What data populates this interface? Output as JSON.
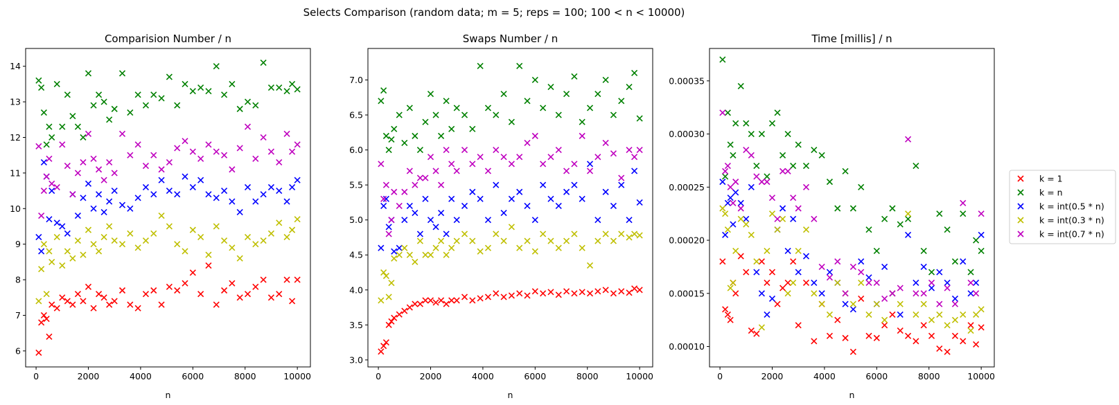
{
  "suptitle": "Selects Comparison (random data;  m = 5;  reps = 100;  100 < n < 10000)",
  "series_meta": [
    {
      "name": "k = 1",
      "color": "#ff0000"
    },
    {
      "name": "k = n",
      "color": "#008000"
    },
    {
      "name": "k = int(0.5 * n)",
      "color": "#0000ff"
    },
    {
      "name": "k = int(0.3 * n)",
      "color": "#bfbf00"
    },
    {
      "name": "k = int(0.7 * n)",
      "color": "#bf00bf"
    }
  ],
  "legend_placement": "center-right outside",
  "chart_data": [
    {
      "type": "scatter",
      "title": "Comparision Number / n",
      "xlabel": "n",
      "ylabel": "",
      "xlim": [
        -400,
        10500
      ],
      "ylim": [
        5.55,
        14.5
      ],
      "xticks": [
        0,
        2000,
        4000,
        6000,
        8000,
        10000
      ],
      "xtick_labels": [
        "0",
        "2000",
        "4000",
        "6000",
        "8000",
        "10000"
      ],
      "yticks": [
        6,
        7,
        8,
        9,
        10,
        11,
        12,
        13,
        14
      ],
      "ytick_labels": [
        "6",
        "7",
        "8",
        "9",
        "10",
        "11",
        "12",
        "13",
        "14"
      ],
      "x": [
        100,
        200,
        300,
        400,
        500,
        600,
        800,
        1000,
        1200,
        1400,
        1600,
        1800,
        2000,
        2200,
        2400,
        2600,
        2800,
        3000,
        3300,
        3600,
        3900,
        4200,
        4500,
        4800,
        5100,
        5400,
        5700,
        6000,
        6300,
        6600,
        6900,
        7200,
        7500,
        7800,
        8100,
        8400,
        8700,
        9000,
        9300,
        9600,
        9800,
        10000
      ],
      "series": [
        {
          "name": "k = 1",
          "values": [
            5.95,
            6.8,
            7.0,
            6.9,
            6.4,
            7.3,
            7.2,
            7.5,
            7.4,
            7.3,
            7.6,
            7.4,
            7.8,
            7.2,
            7.6,
            7.5,
            7.3,
            7.4,
            7.7,
            7.3,
            7.2,
            7.6,
            7.7,
            7.3,
            7.8,
            7.7,
            7.9,
            8.2,
            7.6,
            8.4,
            7.3,
            7.7,
            7.9,
            7.5,
            7.6,
            7.8,
            8.0,
            7.5,
            7.6,
            8.0,
            7.4,
            8.0
          ]
        },
        {
          "name": "k = n",
          "values": [
            13.6,
            13.4,
            12.7,
            11.8,
            12.3,
            12.0,
            13.5,
            12.3,
            13.2,
            12.6,
            12.3,
            12.0,
            13.8,
            12.9,
            13.2,
            13.0,
            12.5,
            12.8,
            13.8,
            12.7,
            13.2,
            12.9,
            13.2,
            13.1,
            13.7,
            12.9,
            13.5,
            13.3,
            13.4,
            13.3,
            14.0,
            13.2,
            13.5,
            12.8,
            13.0,
            12.9,
            14.1,
            13.4,
            13.4,
            13.3,
            13.5,
            13.35
          ]
        },
        {
          "name": "k = int(0.5 * n)",
          "values": [
            9.2,
            8.8,
            11.3,
            10.9,
            9.7,
            10.5,
            9.6,
            9.5,
            9.3,
            10.4,
            9.8,
            10.3,
            10.7,
            10.0,
            10.4,
            9.9,
            10.2,
            10.5,
            10.1,
            10.0,
            10.3,
            10.6,
            10.4,
            10.8,
            10.5,
            10.4,
            10.9,
            10.6,
            10.8,
            10.4,
            10.3,
            10.5,
            10.2,
            9.9,
            10.6,
            10.2,
            10.4,
            10.6,
            10.5,
            10.2,
            10.6,
            10.8
          ]
        },
        {
          "name": "k = int(0.3 * n)",
          "values": [
            7.4,
            8.3,
            9.0,
            7.6,
            8.8,
            8.5,
            9.2,
            8.4,
            8.8,
            8.6,
            9.1,
            8.7,
            9.4,
            9.0,
            8.8,
            9.2,
            9.5,
            9.1,
            9.0,
            9.3,
            8.9,
            9.1,
            9.3,
            9.8,
            9.5,
            9.0,
            8.8,
            9.4,
            9.2,
            8.7,
            9.5,
            9.1,
            8.9,
            8.6,
            9.2,
            9.0,
            9.1,
            9.3,
            9.6,
            9.2,
            9.4,
            9.7
          ]
        },
        {
          "name": "k = int(0.7 * n)",
          "values": [
            11.75,
            9.8,
            10.5,
            10.9,
            11.4,
            10.7,
            10.6,
            11.8,
            11.2,
            10.4,
            11.0,
            11.3,
            12.1,
            11.4,
            11.1,
            10.8,
            11.3,
            11.0,
            12.1,
            11.5,
            11.8,
            11.2,
            11.5,
            11.1,
            11.3,
            11.7,
            11.9,
            11.6,
            11.4,
            11.8,
            11.6,
            11.5,
            11.1,
            11.7,
            12.3,
            11.4,
            12.0,
            11.6,
            11.3,
            12.1,
            11.6,
            11.8
          ]
        }
      ]
    },
    {
      "type": "scatter",
      "title": "Swaps Number / n",
      "xlabel": "n",
      "ylabel": "",
      "xlim": [
        -400,
        10500
      ],
      "ylim": [
        2.9,
        7.45
      ],
      "xticks": [
        0,
        2000,
        4000,
        6000,
        8000,
        10000
      ],
      "xtick_labels": [
        "0",
        "2000",
        "4000",
        "6000",
        "8000",
        "10000"
      ],
      "yticks": [
        3.0,
        3.5,
        4.0,
        4.5,
        5.0,
        5.5,
        6.0,
        6.5,
        7.0
      ],
      "ytick_labels": [
        "3.0",
        "3.5",
        "4.0",
        "4.5",
        "5.0",
        "5.5",
        "6.0",
        "6.5",
        "7.0"
      ],
      "x": [
        100,
        200,
        300,
        400,
        500,
        600,
        800,
        1000,
        1200,
        1400,
        1600,
        1800,
        2000,
        2200,
        2400,
        2600,
        2800,
        3000,
        3300,
        3600,
        3900,
        4200,
        4500,
        4800,
        5100,
        5400,
        5700,
        6000,
        6300,
        6600,
        6900,
        7200,
        7500,
        7800,
        8100,
        8400,
        8700,
        9000,
        9300,
        9600,
        9800,
        10000
      ],
      "series": [
        {
          "name": "k = 1",
          "values": [
            3.12,
            3.2,
            3.25,
            3.5,
            3.55,
            3.6,
            3.65,
            3.7,
            3.75,
            3.8,
            3.8,
            3.85,
            3.85,
            3.82,
            3.85,
            3.8,
            3.85,
            3.85,
            3.9,
            3.85,
            3.88,
            3.9,
            3.95,
            3.9,
            3.92,
            3.95,
            3.92,
            3.98,
            3.95,
            3.97,
            3.93,
            3.98,
            3.95,
            3.97,
            3.95,
            3.98,
            4.0,
            3.95,
            3.98,
            3.96,
            4.02,
            4.0
          ]
        },
        {
          "name": "k = n",
          "values": [
            6.7,
            6.85,
            6.2,
            6.0,
            6.15,
            6.3,
            6.5,
            6.1,
            6.6,
            6.2,
            6.0,
            6.4,
            6.8,
            6.5,
            6.2,
            6.7,
            6.3,
            6.6,
            6.5,
            6.3,
            7.2,
            6.6,
            6.5,
            6.8,
            6.4,
            7.2,
            6.7,
            7.0,
            6.6,
            6.9,
            6.5,
            6.8,
            7.05,
            6.4,
            6.6,
            6.8,
            7.0,
            6.5,
            6.7,
            6.9,
            7.1,
            6.45
          ]
        },
        {
          "name": "k = int(0.5 * n)",
          "values": [
            4.6,
            5.2,
            5.3,
            4.9,
            5.0,
            4.55,
            4.6,
            5.0,
            5.2,
            5.1,
            4.8,
            5.3,
            5.0,
            4.9,
            5.1,
            4.8,
            5.3,
            5.0,
            5.2,
            5.4,
            5.3,
            5.0,
            5.5,
            5.1,
            5.3,
            5.4,
            5.2,
            5.0,
            5.5,
            5.3,
            5.2,
            5.4,
            5.5,
            5.3,
            5.8,
            5.0,
            5.4,
            5.2,
            5.5,
            5.0,
            5.7,
            5.25
          ]
        },
        {
          "name": "k = int(0.3 * n)",
          "values": [
            3.85,
            4.25,
            4.2,
            3.9,
            4.1,
            4.45,
            4.5,
            4.6,
            4.5,
            4.4,
            4.7,
            4.5,
            4.5,
            4.6,
            4.7,
            4.5,
            4.6,
            4.7,
            4.8,
            4.7,
            4.55,
            4.6,
            4.8,
            4.7,
            4.9,
            4.6,
            4.7,
            4.55,
            4.8,
            4.7,
            4.6,
            4.7,
            4.8,
            4.6,
            4.35,
            4.7,
            4.8,
            4.7,
            4.8,
            4.75,
            4.8,
            4.78
          ]
        },
        {
          "name": "k = int(0.7 * n)",
          "values": [
            5.8,
            5.3,
            5.5,
            4.8,
            5.0,
            5.4,
            5.2,
            5.4,
            5.7,
            5.5,
            5.6,
            5.6,
            5.9,
            5.7,
            5.5,
            6.0,
            5.8,
            5.7,
            6.0,
            5.8,
            5.9,
            5.7,
            6.0,
            5.9,
            5.8,
            5.9,
            6.1,
            6.2,
            5.8,
            5.9,
            6.0,
            5.7,
            5.8,
            6.2,
            5.7,
            5.9,
            6.1,
            5.95,
            5.6,
            6.0,
            5.9,
            6.0
          ]
        }
      ]
    },
    {
      "type": "scatter",
      "title": "Time [millis] / n",
      "xlabel": "n",
      "ylabel": "",
      "xlim": [
        -400,
        10500
      ],
      "ylim": [
        8.08e-05,
        0.0003805
      ],
      "xticks": [
        0,
        2000,
        4000,
        6000,
        8000,
        10000
      ],
      "xtick_labels": [
        "0",
        "2000",
        "4000",
        "6000",
        "8000",
        "10000"
      ],
      "yticks": [
        0.0001,
        0.00015,
        0.0002,
        0.00025,
        0.0003,
        0.00035
      ],
      "ytick_labels": [
        "0.00010",
        "0.00015",
        "0.00020",
        "0.00025",
        "0.00030",
        "0.00035"
      ],
      "x": [
        100,
        200,
        300,
        400,
        500,
        600,
        800,
        1000,
        1200,
        1400,
        1600,
        1800,
        2000,
        2200,
        2400,
        2600,
        2800,
        3000,
        3300,
        3600,
        3900,
        4200,
        4500,
        4800,
        5100,
        5400,
        5700,
        6000,
        6300,
        6600,
        6900,
        7200,
        7500,
        7800,
        8100,
        8400,
        8700,
        9000,
        9300,
        9600,
        9800,
        10000
      ],
      "series": [
        {
          "name": "k = 1",
          "values": [
            0.00018,
            0.000135,
            0.00013,
            0.000125,
            0.00016,
            0.00015,
            0.000185,
            0.00017,
            0.000115,
            0.000112,
            0.00018,
            0.00016,
            0.00017,
            0.00014,
            0.000155,
            0.00016,
            0.00018,
            0.00012,
            0.00016,
            0.000105,
            0.00014,
            0.00011,
            0.000125,
            0.000108,
            9.5e-05,
            0.000145,
            0.00011,
            0.000108,
            0.00012,
            0.00013,
            0.000115,
            0.00011,
            0.000105,
            0.00012,
            0.00011,
            9.8e-05,
            9.5e-05,
            0.00011,
            0.000105,
            0.00012,
            0.000102,
            0.000118
          ]
        },
        {
          "name": "k = n",
          "values": [
            0.00037,
            0.00026,
            0.00032,
            0.00029,
            0.00028,
            0.00031,
            0.000345,
            0.00031,
            0.0003,
            0.00027,
            0.0003,
            0.00026,
            0.00031,
            0.00032,
            0.00028,
            0.0003,
            0.00027,
            0.00029,
            0.00027,
            0.000285,
            0.00028,
            0.000255,
            0.00023,
            0.000265,
            0.00023,
            0.00025,
            0.00021,
            0.00019,
            0.00022,
            0.00023,
            0.000215,
            0.00022,
            0.00027,
            0.00019,
            0.00017,
            0.000225,
            0.00021,
            0.00018,
            0.000225,
            0.00017,
            0.0002,
            0.00019
          ]
        },
        {
          "name": "k = int(0.5 * n)",
          "values": [
            0.000255,
            0.000205,
            0.000235,
            0.00024,
            0.000215,
            0.000245,
            0.000235,
            0.00022,
            0.00025,
            0.00017,
            0.00015,
            0.00013,
            0.000145,
            0.00021,
            0.00023,
            0.00019,
            0.00022,
            0.00017,
            0.000185,
            0.00016,
            0.00015,
            0.00017,
            0.00016,
            0.00014,
            0.000135,
            0.00018,
            0.000165,
            0.00014,
            0.000175,
            0.00015,
            0.00013,
            0.000205,
            0.00016,
            0.000175,
            0.000155,
            0.00017,
            0.00016,
            0.000145,
            0.00018,
            0.00015,
            0.00016,
            0.000205
          ]
        },
        {
          "name": "k = int(0.3 * n)",
          "values": [
            0.00023,
            0.000225,
            0.00021,
            0.000155,
            0.00016,
            0.00019,
            0.00022,
            0.000215,
            0.000205,
            0.00018,
            0.000118,
            0.00019,
            0.000225,
            0.00021,
            0.00022,
            0.00015,
            0.00016,
            0.00019,
            0.00021,
            0.00015,
            0.00014,
            0.00013,
            0.00016,
            0.00015,
            0.00014,
            0.00016,
            0.00013,
            0.00014,
            0.000125,
            0.00015,
            0.00014,
            0.000225,
            0.00013,
            0.00014,
            0.000125,
            0.00013,
            0.00012,
            0.000125,
            0.00013,
            0.000115,
            0.00013,
            0.000135
          ]
        },
        {
          "name": "k = int(0.7 * n)",
          "values": [
            0.00032,
            0.000265,
            0.00027,
            0.00025,
            0.000235,
            0.000255,
            0.00023,
            0.000285,
            0.00028,
            0.00026,
            0.000255,
            0.000255,
            0.00024,
            0.00022,
            0.000265,
            0.000265,
            0.00024,
            0.00023,
            0.00025,
            0.00022,
            0.000175,
            0.000165,
            0.00018,
            0.00015,
            0.000175,
            0.00017,
            0.00016,
            0.00016,
            0.000145,
            0.00015,
            0.000155,
            0.000295,
            0.00015,
            0.00015,
            0.00016,
            0.00014,
            0.000155,
            0.00014,
            0.000235,
            0.00016,
            0.00015,
            0.000225
          ]
        }
      ]
    }
  ]
}
